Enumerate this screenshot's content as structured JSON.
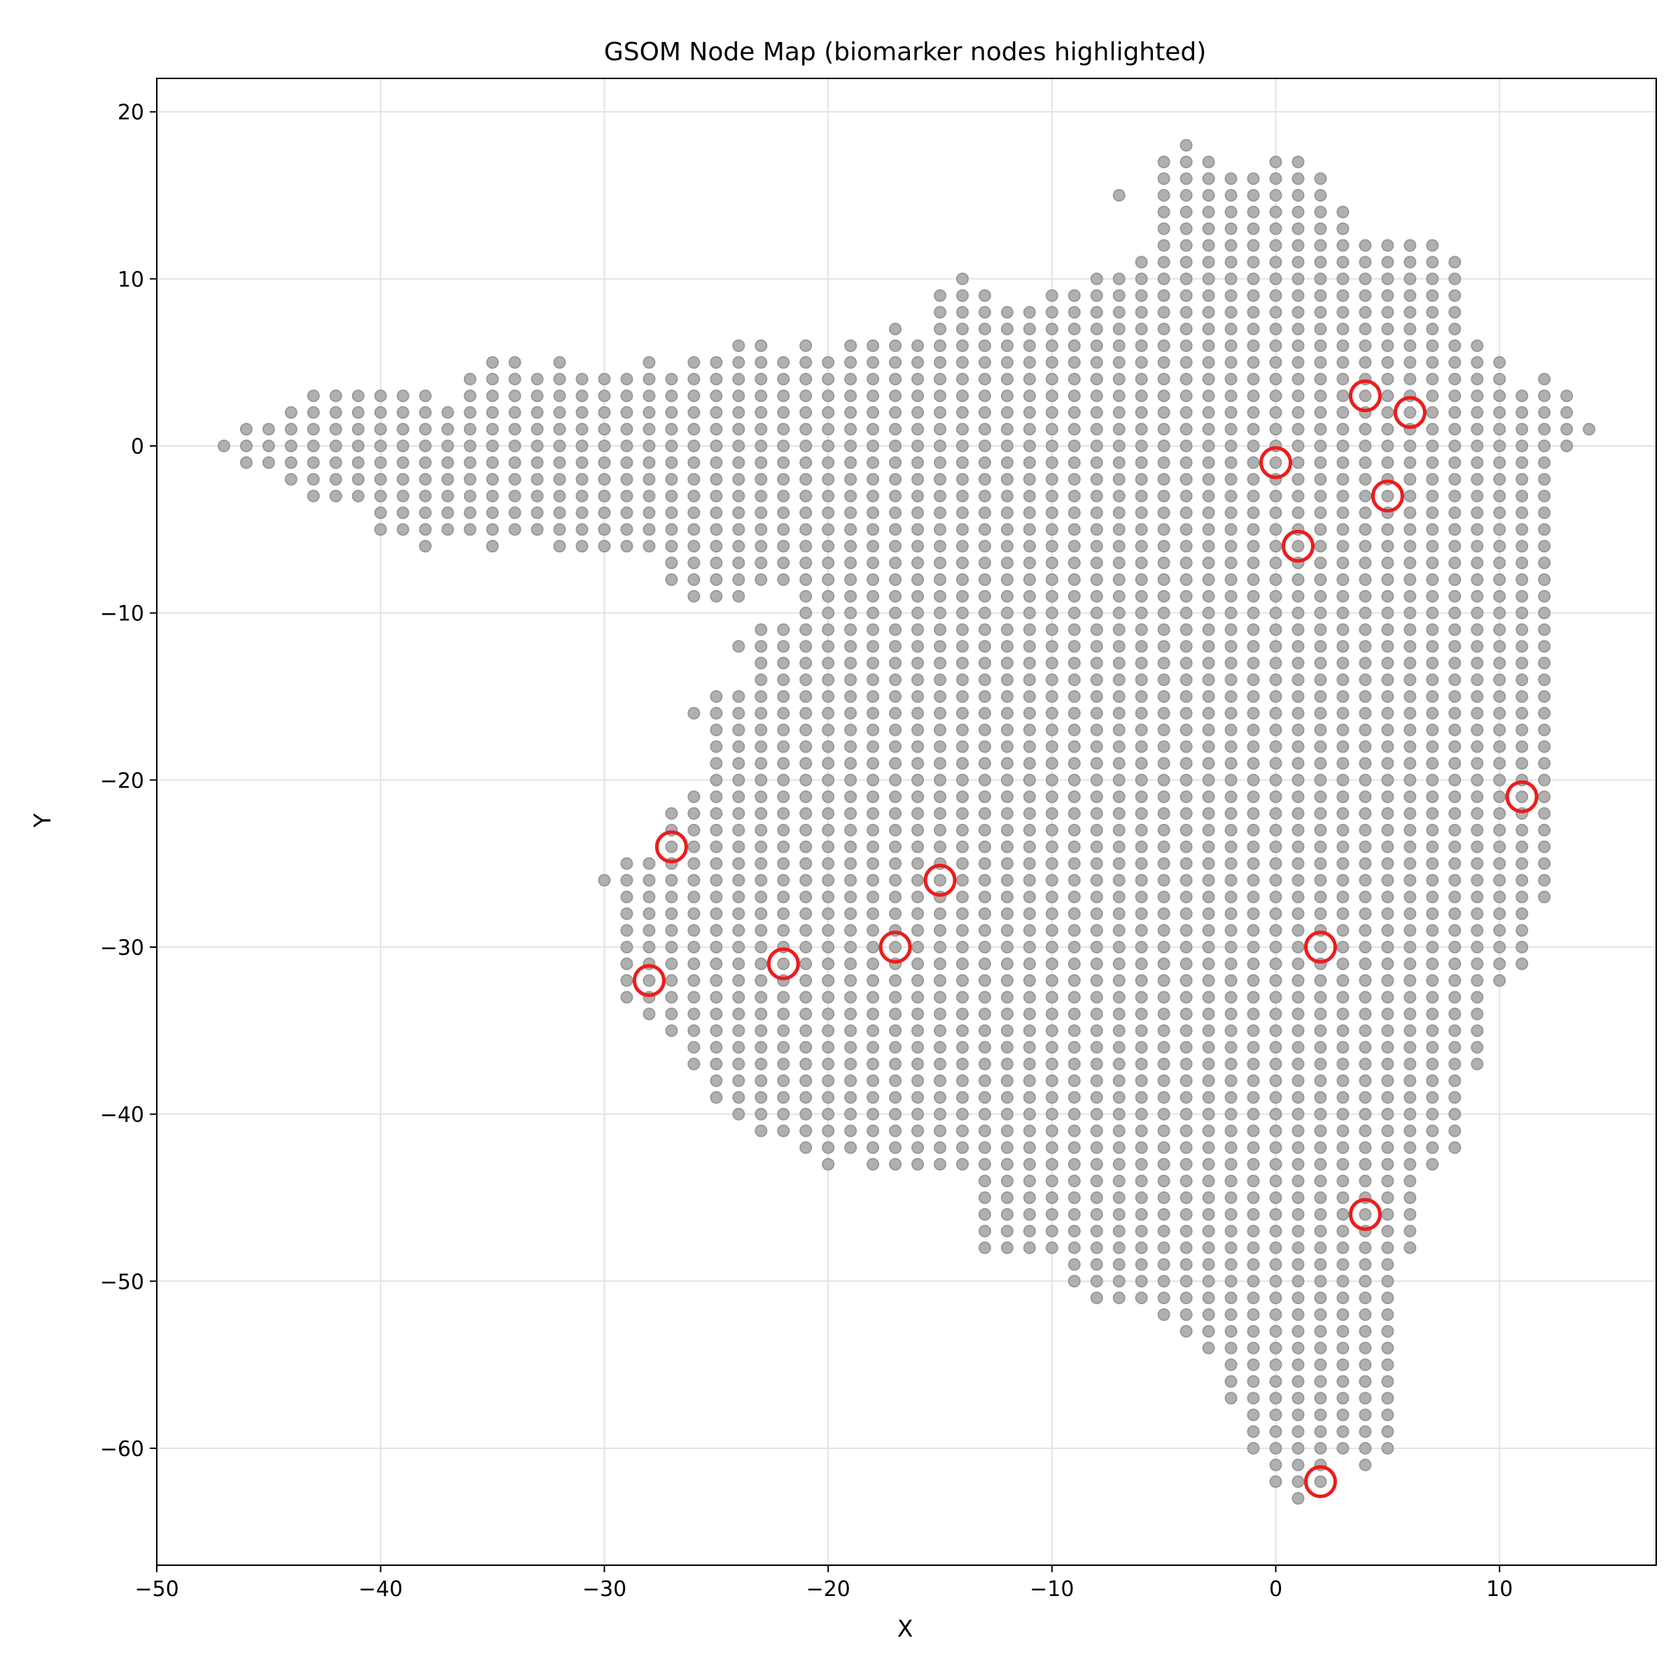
{
  "chart_data": {
    "type": "scatter",
    "title": "GSOM Node Map (biomarker nodes highlighted)",
    "xlabel": "X",
    "ylabel": "Y",
    "xlim": [
      -50,
      17
    ],
    "ylim": [
      -67,
      22
    ],
    "xticks": [
      -50,
      -40,
      -30,
      -20,
      -10,
      0,
      10
    ],
    "yticks": [
      20,
      10,
      0,
      -10,
      -20,
      -30,
      -40,
      -50,
      -60
    ],
    "xtick_labels": [
      "−50",
      "−40",
      "−30",
      "−20",
      "−10",
      "0",
      "10"
    ],
    "ytick_labels": [
      "20",
      "10",
      "0",
      "−10",
      "−20",
      "−30",
      "−40",
      "−50",
      "−60"
    ],
    "grid": true,
    "colors": {
      "node_fill": "#b0b0b0",
      "node_edge": "#9a9a9a",
      "highlight": "#ee1c1c",
      "grid": "#e3e3e3"
    },
    "node_columns": [
      {
        "x": -47,
        "ranges": [
          [
            0,
            0
          ]
        ]
      },
      {
        "x": -46,
        "ranges": [
          [
            -1,
            1
          ]
        ]
      },
      {
        "x": -45,
        "ranges": [
          [
            -1,
            1
          ]
        ]
      },
      {
        "x": -44,
        "ranges": [
          [
            -2,
            2
          ]
        ]
      },
      {
        "x": -43,
        "ranges": [
          [
            -3,
            3
          ]
        ]
      },
      {
        "x": -42,
        "ranges": [
          [
            -3,
            3
          ]
        ]
      },
      {
        "x": -41,
        "ranges": [
          [
            -3,
            3
          ]
        ]
      },
      {
        "x": -40,
        "ranges": [
          [
            -5,
            3
          ]
        ]
      },
      {
        "x": -39,
        "ranges": [
          [
            -5,
            3
          ]
        ]
      },
      {
        "x": -38,
        "ranges": [
          [
            -6,
            3
          ]
        ]
      },
      {
        "x": -37,
        "ranges": [
          [
            -5,
            2
          ]
        ]
      },
      {
        "x": -36,
        "ranges": [
          [
            -5,
            4
          ]
        ]
      },
      {
        "x": -35,
        "ranges": [
          [
            -6,
            5
          ]
        ]
      },
      {
        "x": -34,
        "ranges": [
          [
            -5,
            5
          ]
        ]
      },
      {
        "x": -33,
        "ranges": [
          [
            -5,
            4
          ]
        ]
      },
      {
        "x": -32,
        "ranges": [
          [
            -6,
            5
          ]
        ]
      },
      {
        "x": -31,
        "ranges": [
          [
            -6,
            4
          ]
        ]
      },
      {
        "x": -30,
        "ranges": [
          [
            -6,
            4
          ]
        ],
        "extra": [
          -26
        ]
      },
      {
        "x": -29,
        "ranges": [
          [
            -6,
            4
          ],
          [
            -33,
            -25
          ]
        ]
      },
      {
        "x": -28,
        "ranges": [
          [
            -6,
            5
          ],
          [
            -34,
            -25
          ]
        ]
      },
      {
        "x": -27,
        "ranges": [
          [
            -8,
            4
          ],
          [
            -35,
            -22
          ]
        ]
      },
      {
        "x": -26,
        "ranges": [
          [
            -9,
            5
          ],
          [
            -37,
            -21
          ],
          [
            -16,
            -16
          ]
        ]
      },
      {
        "x": -25,
        "ranges": [
          [
            -9,
            5
          ],
          [
            -39,
            -15
          ]
        ]
      },
      {
        "x": -24,
        "ranges": [
          [
            -9,
            6
          ],
          [
            -40,
            -15
          ]
        ],
        "extra": [
          -12
        ]
      },
      {
        "x": -23,
        "ranges": [
          [
            -8,
            6
          ],
          [
            -41,
            -11
          ]
        ]
      },
      {
        "x": -22,
        "ranges": [
          [
            -8,
            5
          ],
          [
            -41,
            -11
          ]
        ]
      },
      {
        "x": -21,
        "ranges": [
          [
            -9,
            6
          ],
          [
            -42,
            -10
          ]
        ]
      },
      {
        "x": -20,
        "ranges": [
          [
            -43,
            5
          ]
        ]
      },
      {
        "x": -19,
        "ranges": [
          [
            -42,
            6
          ]
        ]
      },
      {
        "x": -18,
        "ranges": [
          [
            -43,
            6
          ]
        ]
      },
      {
        "x": -17,
        "ranges": [
          [
            -43,
            7
          ]
        ]
      },
      {
        "x": -16,
        "ranges": [
          [
            -43,
            6
          ]
        ]
      },
      {
        "x": -15,
        "ranges": [
          [
            -43,
            9
          ]
        ]
      },
      {
        "x": -14,
        "ranges": [
          [
            -43,
            10
          ]
        ]
      },
      {
        "x": -13,
        "ranges": [
          [
            -48,
            9
          ]
        ]
      },
      {
        "x": -12,
        "ranges": [
          [
            -48,
            8
          ]
        ]
      },
      {
        "x": -11,
        "ranges": [
          [
            -48,
            8
          ]
        ]
      },
      {
        "x": -10,
        "ranges": [
          [
            -48,
            9
          ]
        ]
      },
      {
        "x": -9,
        "ranges": [
          [
            -50,
            9
          ]
        ]
      },
      {
        "x": -8,
        "ranges": [
          [
            -51,
            10
          ]
        ]
      },
      {
        "x": -7,
        "ranges": [
          [
            -51,
            10
          ]
        ],
        "extra": [
          15
        ]
      },
      {
        "x": -6,
        "ranges": [
          [
            -51,
            11
          ]
        ]
      },
      {
        "x": -5,
        "ranges": [
          [
            -52,
            17
          ]
        ]
      },
      {
        "x": -4,
        "ranges": [
          [
            -53,
            18
          ]
        ]
      },
      {
        "x": -3,
        "ranges": [
          [
            -54,
            17
          ]
        ]
      },
      {
        "x": -2,
        "ranges": [
          [
            -57,
            16
          ]
        ]
      },
      {
        "x": -1,
        "ranges": [
          [
            -60,
            16
          ]
        ]
      },
      {
        "x": 0,
        "ranges": [
          [
            -62,
            17
          ]
        ]
      },
      {
        "x": 1,
        "ranges": [
          [
            -63,
            17
          ]
        ]
      },
      {
        "x": 2,
        "ranges": [
          [
            -62,
            16
          ]
        ]
      },
      {
        "x": 3,
        "ranges": [
          [
            -60,
            14
          ]
        ]
      },
      {
        "x": 4,
        "ranges": [
          [
            -61,
            12
          ]
        ]
      },
      {
        "x": 5,
        "ranges": [
          [
            -60,
            12
          ]
        ]
      },
      {
        "x": 6,
        "ranges": [
          [
            -48,
            12
          ]
        ]
      },
      {
        "x": 7,
        "ranges": [
          [
            -43,
            12
          ]
        ]
      },
      {
        "x": 8,
        "ranges": [
          [
            -42,
            11
          ]
        ]
      },
      {
        "x": 9,
        "ranges": [
          [
            -37,
            6
          ]
        ]
      },
      {
        "x": 10,
        "ranges": [
          [
            -32,
            5
          ]
        ]
      },
      {
        "x": 11,
        "ranges": [
          [
            -31,
            3
          ]
        ]
      },
      {
        "x": 12,
        "ranges": [
          [
            -27,
            4
          ]
        ]
      },
      {
        "x": 13,
        "ranges": [
          [
            0,
            3
          ]
        ]
      },
      {
        "x": 14,
        "ranges": [
          [
            1,
            1
          ]
        ]
      }
    ],
    "biomarker_nodes": [
      {
        "x": 4,
        "y": 3
      },
      {
        "x": 6,
        "y": 2
      },
      {
        "x": 0,
        "y": -1
      },
      {
        "x": 5,
        "y": -3
      },
      {
        "x": 1,
        "y": -6
      },
      {
        "x": 11,
        "y": -21
      },
      {
        "x": -27,
        "y": -24
      },
      {
        "x": -15,
        "y": -26
      },
      {
        "x": -17,
        "y": -30
      },
      {
        "x": 2,
        "y": -30
      },
      {
        "x": -22,
        "y": -31
      },
      {
        "x": -28,
        "y": -32
      },
      {
        "x": 4,
        "y": -46
      },
      {
        "x": 2,
        "y": -62
      }
    ]
  }
}
